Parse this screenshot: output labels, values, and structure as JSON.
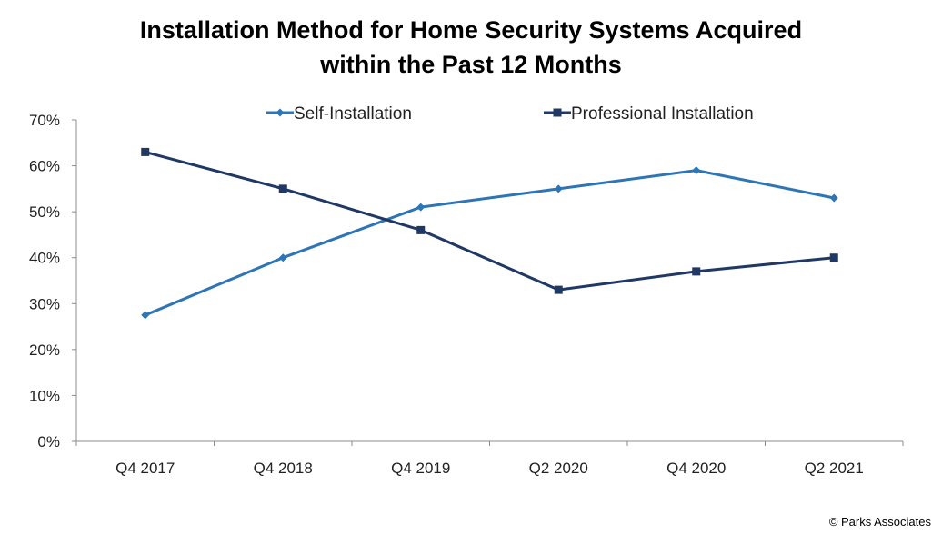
{
  "chart_data": {
    "type": "line",
    "title": [
      "Installation Method for Home Security Systems Acquired",
      "within the Past 12 Months"
    ],
    "categories": [
      "Q4 2017",
      "Q4 2018",
      "Q4 2019",
      "Q2 2020",
      "Q4 2020",
      "Q2 2021"
    ],
    "y_ticks": [
      "0%",
      "10%",
      "20%",
      "30%",
      "40%",
      "50%",
      "60%",
      "70%"
    ],
    "ylim": [
      0,
      70
    ],
    "grid": false,
    "legend_position": "top",
    "series": [
      {
        "name": "Self-Installation",
        "color": "#2E75B6",
        "marker": "diamond",
        "values": [
          27.5,
          40,
          51,
          55,
          59,
          53
        ]
      },
      {
        "name": "Professional Installation",
        "color": "#1F3864",
        "marker": "square",
        "values": [
          63,
          55,
          46,
          33,
          37,
          40
        ]
      }
    ]
  },
  "credit": "© Parks Associates"
}
